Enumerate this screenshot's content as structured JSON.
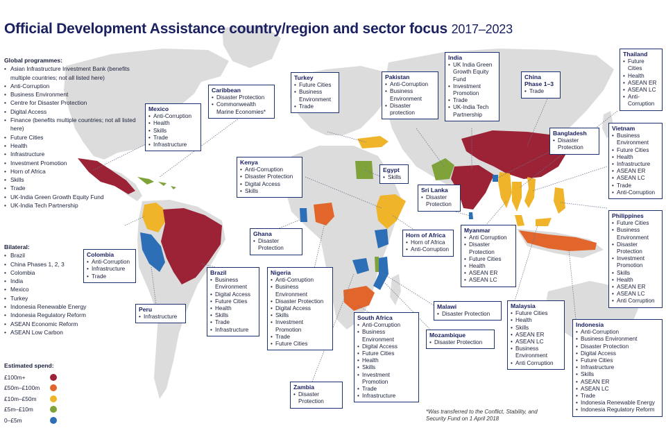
{
  "title": "Official Development Assistance country/region and sector focus",
  "title_years": "2017–2023",
  "global_programmes": {
    "heading": "Global programmes:",
    "items": [
      "Asian Infrastructure Investment Bank (benefits multiple countries; not all listed here)",
      "Anti-Corruption",
      "Business Environment",
      "Centre for Disaster Protection",
      "Digital Access",
      "Finance (benefits multiple countries; not all listed here)",
      "Future Cities",
      "Health",
      "Infrastructure",
      "Investment Promotion",
      "Horn of Africa",
      "Skills",
      "Trade",
      "UK-India Green Growth Equity Fund",
      "UK-India Tech Partnership"
    ]
  },
  "bilateral": {
    "heading": "Bilateral:",
    "items": [
      "Brazil",
      "China Phases 1, 2, 3",
      "Colombia",
      "India",
      "Mexico",
      "Turkey",
      "Indonesia Renewable Energy",
      "Indonesia Regulatory Reform",
      "ASEAN Economic Reform",
      "ASEAN Low Carbon"
    ]
  },
  "legend": {
    "heading": "Estimated spend:",
    "items": [
      {
        "label": "£100m+",
        "color": "#9b2335"
      },
      {
        "label": "£50m–£100m",
        "color": "#e2662b"
      },
      {
        "label": "£10m–£50m",
        "color": "#f0b42a"
      },
      {
        "label": "£5m–£10m",
        "color": "#7fa33a"
      },
      {
        "label": "0–£5m",
        "color": "#2d6fb7"
      }
    ]
  },
  "countries": {
    "thailand": {
      "title": "Thailand",
      "items": [
        "Future Cities",
        "Health",
        "ASEAN ER",
        "ASEAN LC",
        "Anti-Corruption"
      ]
    },
    "india": {
      "title": "India",
      "items": [
        "UK India Green Growth Equity Fund",
        "Investment Promotion",
        "Trade",
        "UK-India Tech Partnership"
      ]
    },
    "pakistan": {
      "title": "Pakistan",
      "items": [
        "Anti-Corruption",
        "Business Environment",
        "Disaster protection"
      ]
    },
    "turkey": {
      "title": "Turkey",
      "items": [
        "Future Cities",
        "Business Environment",
        "Trade"
      ]
    },
    "caribbean": {
      "title": "Caribbean",
      "items": [
        "Disaster Protection",
        "Commonwealth Marine Economies*"
      ]
    },
    "mexico": {
      "title": "Mexico",
      "items": [
        "Anti-Corruption",
        "Health",
        "Skills",
        "Trade",
        "Infrastructure"
      ]
    },
    "china": {
      "title": "China Phase 1–3",
      "items": [
        "Trade"
      ]
    },
    "bangladesh": {
      "title": "Bangladesh",
      "items": [
        "Disaster Protection"
      ]
    },
    "vietnam": {
      "title": "Vietnam",
      "items": [
        "Business Environment",
        "Future Cities",
        "Health",
        "Infrastructure",
        "ASEAN ER",
        "ASEAN LC",
        "Trade",
        "Anti-Corruption"
      ]
    },
    "kenya": {
      "title": "Kenya",
      "items": [
        "Anti-Corruption",
        "Disaster Protection",
        "Digital Access",
        "Skills"
      ]
    },
    "egypt": {
      "title": "Egypt",
      "items": [
        "Skills"
      ]
    },
    "sri_lanka": {
      "title": "Sri Lanka",
      "items": [
        "Disaster Protection"
      ]
    },
    "philippines": {
      "title": "Philippines",
      "items": [
        "Future Cities",
        "Business Environment",
        "Disaster Protection",
        "Investment Promotion",
        "Skills",
        "Health",
        "ASEAN ER",
        "ASEAN LC",
        "Anti Corruption"
      ]
    },
    "colombia": {
      "title": "Colombia",
      "items": [
        "Anti-Corruption",
        "Infrastructure",
        "Trade"
      ]
    },
    "ghana": {
      "title": "Ghana",
      "items": [
        "Disaster Protection"
      ]
    },
    "horn_of_africa": {
      "title": "Horn of Africa",
      "items": [
        "Horn of Africa",
        "Anti-Corruption"
      ]
    },
    "myanmar": {
      "title": "Myanmar",
      "items": [
        "Anti Corruption",
        "Disaster Protection",
        "Future Cities",
        "Health",
        "ASEAN ER",
        "ASEAN LC"
      ]
    },
    "brazil": {
      "title": "Brazil",
      "items": [
        "Business Environment",
        "Digital Access",
        "Future Cities",
        "Health",
        "Skills",
        "Trade",
        "Infrastructure"
      ]
    },
    "nigeria": {
      "title": "Nigeria",
      "items": [
        "Anti-Corruption",
        "Business Environment",
        "Disaster Protection",
        "Digital Access",
        "Skills",
        "Investment Promotion",
        "Trade",
        "Future Cities"
      ]
    },
    "peru": {
      "title": "Peru",
      "items": [
        "Infrastructure"
      ]
    },
    "malawi": {
      "title": "Malawi",
      "items": [
        "Disaster Protection"
      ]
    },
    "malaysia": {
      "title": "Malaysia",
      "items": [
        "Future Cities",
        "Health",
        "Skills",
        "ASEAN ER",
        "ASEAN LC",
        "Business Environment",
        "Anti Corruption"
      ]
    },
    "indonesia": {
      "title": "Indonesia",
      "items": [
        "Anti-Corruption",
        "Business Environment",
        "Disaster Protection",
        "Digital Access",
        "Future Cities",
        "Infrastructure",
        "Skills",
        "ASEAN ER",
        "ASEAN LC",
        "Trade",
        "Indonesia Renewable Energy",
        "Indonesia Regulatory Reform"
      ]
    },
    "south_africa": {
      "title": "South Africa",
      "items": [
        "Anti-Corruption",
        "Business Environment",
        "Digital Access",
        "Future Cities",
        "Health",
        "Skills",
        "Investment Promotion",
        "Trade",
        "Infrastructure"
      ]
    },
    "mozambique": {
      "title": "Mozambique",
      "items": [
        "Disaster Protection"
      ]
    },
    "zambia": {
      "title": "Zambia",
      "items": [
        "Disaster Protection"
      ]
    }
  },
  "footnote": "*Was transferred to the Conflict, Stability, and Security Fund on 1 April 2018"
}
